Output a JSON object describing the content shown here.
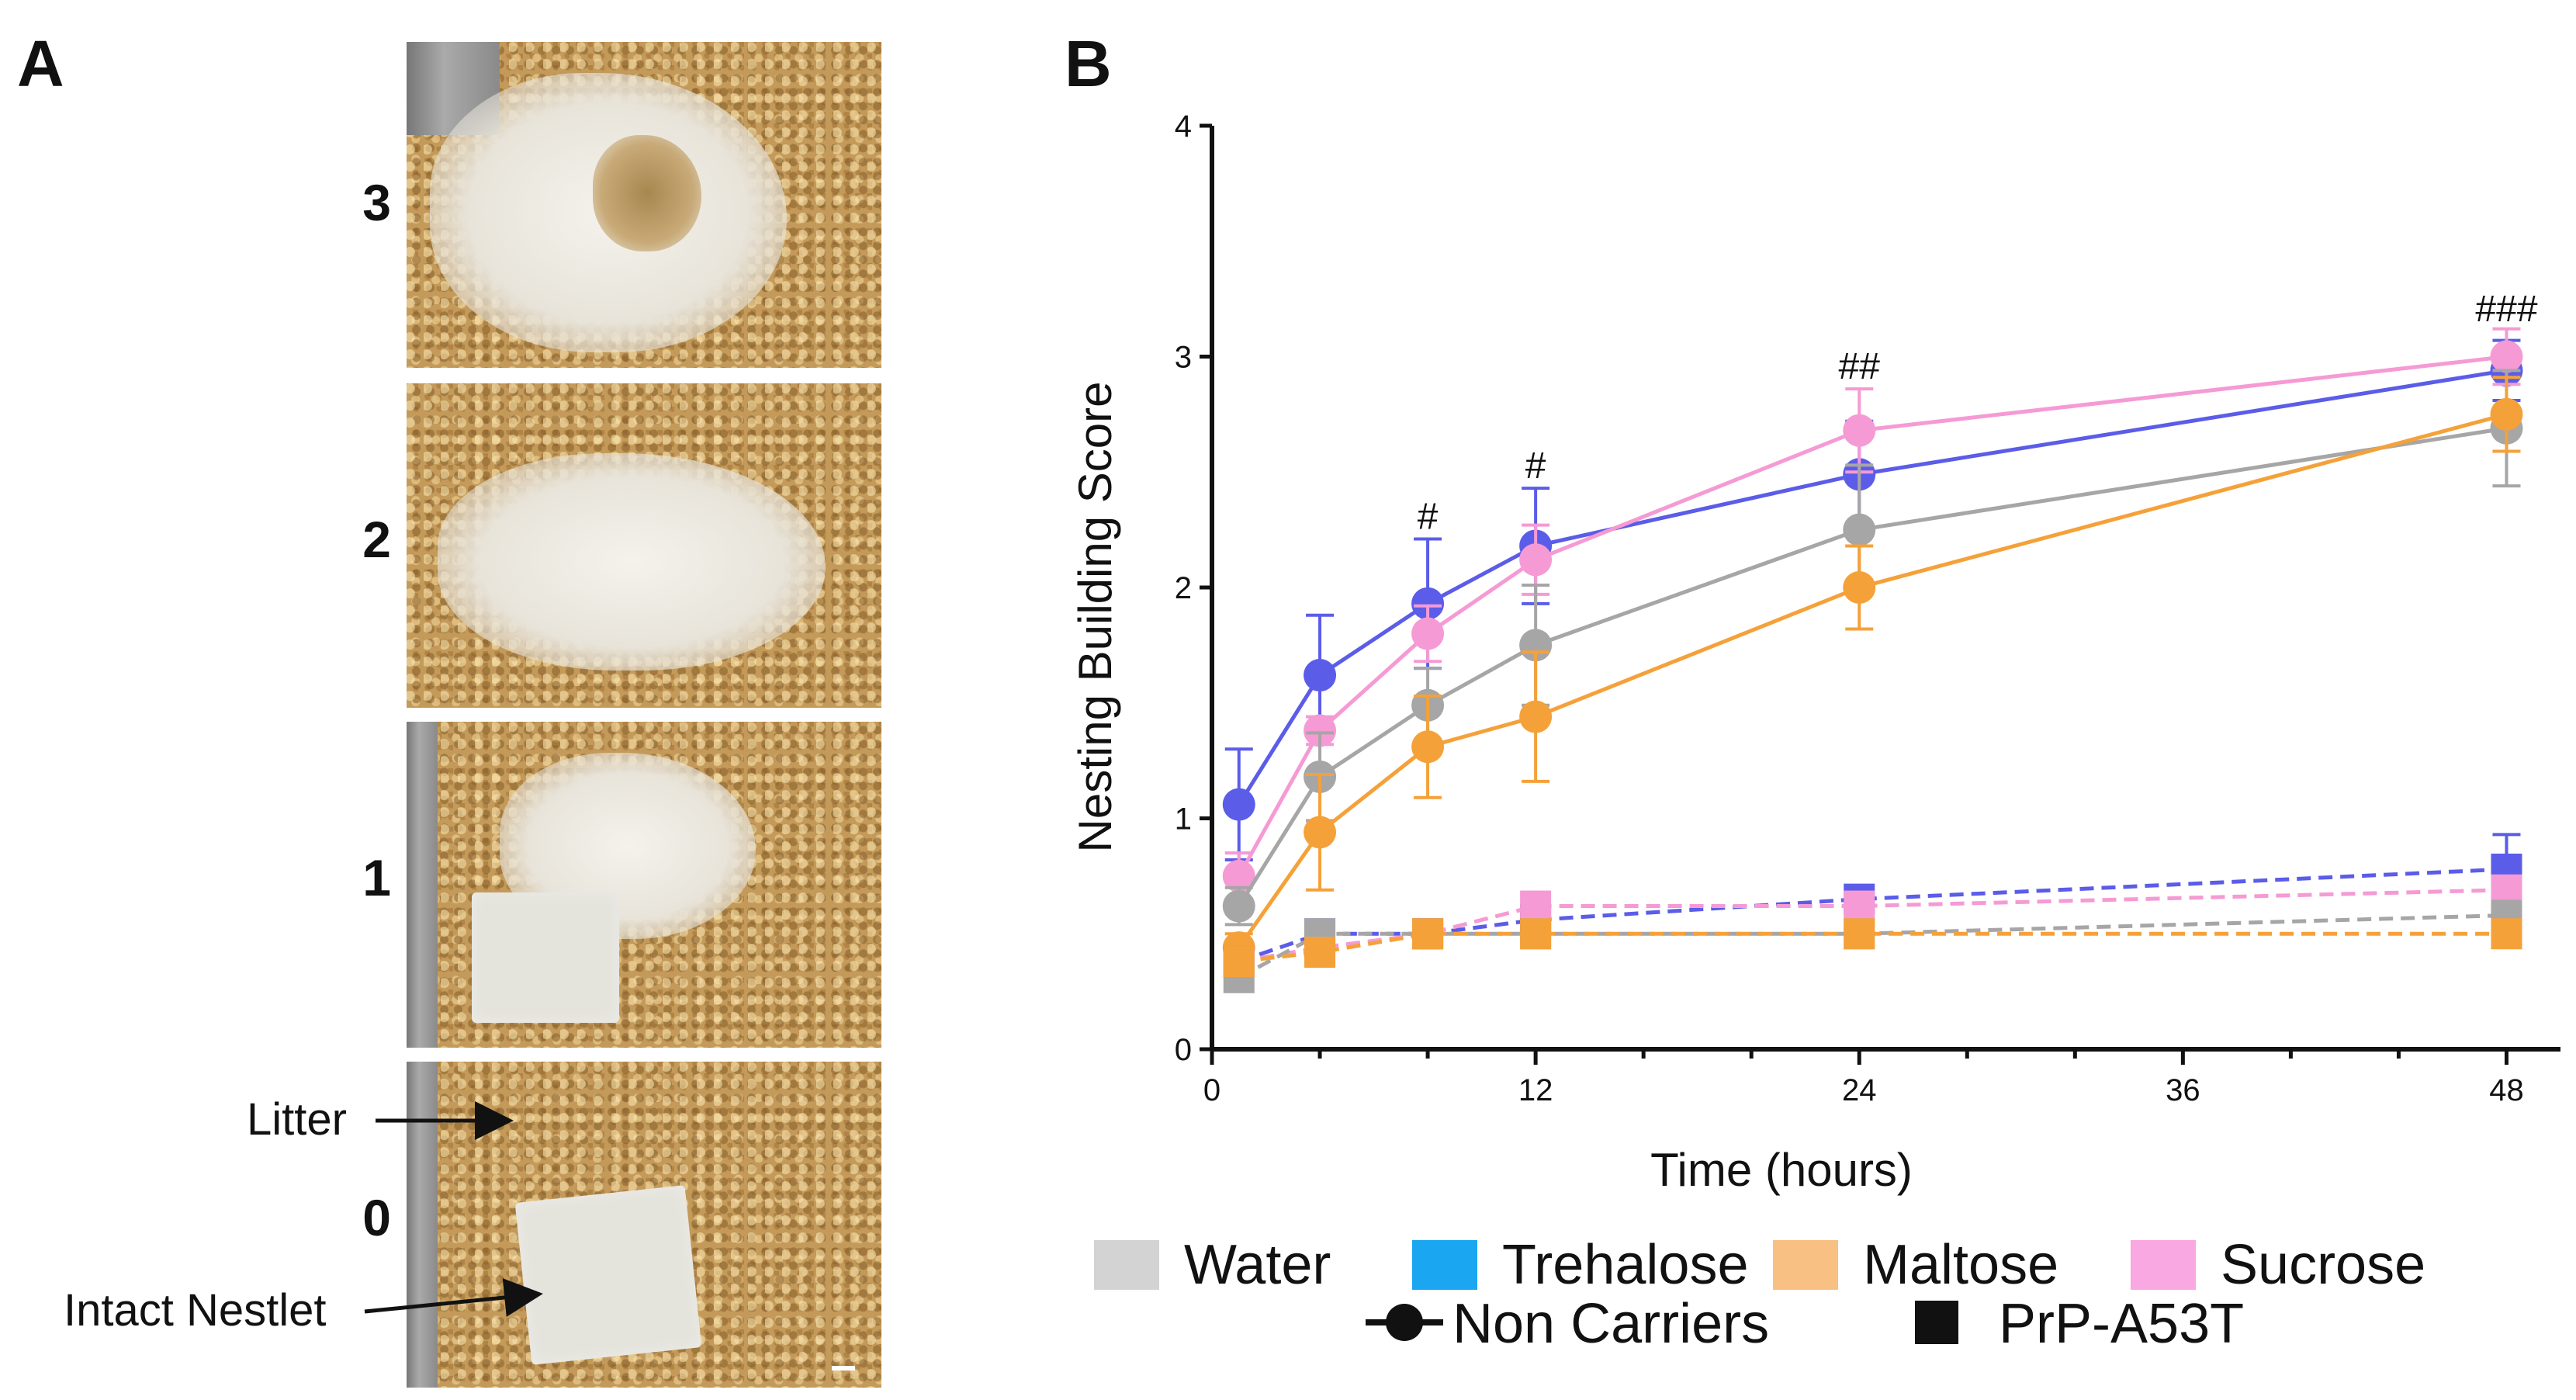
{
  "panel_a": {
    "letter": "A",
    "scores": [
      "3",
      "2",
      "1",
      "0"
    ],
    "annotations": {
      "litter": "Litter",
      "intact_nestlet": "Intact Nestlet"
    }
  },
  "panel_b": {
    "letter": "B"
  },
  "chart_data": {
    "type": "line",
    "ylabel": "Nesting Building Score",
    "xlabel": "Time (hours)",
    "xlim": [
      0,
      50
    ],
    "ylim": [
      0,
      4
    ],
    "xticks": [
      0,
      12,
      24,
      36,
      48
    ],
    "yticks": [
      0,
      1,
      2,
      3,
      4
    ],
    "x": [
      1,
      4,
      8,
      12,
      24,
      48
    ],
    "annotations": [
      {
        "x": 8,
        "y": 2.22,
        "text": "#"
      },
      {
        "x": 12,
        "y": 2.44,
        "text": "#"
      },
      {
        "x": 24,
        "y": 2.87,
        "text": "##"
      },
      {
        "x": 48,
        "y": 3.12,
        "text": "###"
      }
    ],
    "colors": {
      "Water": "#a6a6a6",
      "Trehalose": "#5b5ce8",
      "Maltose": "#f5a13a",
      "Sucrose": "#f59ad4"
    },
    "series": [
      {
        "name": "Trehalose Non Carriers",
        "treatment": "Trehalose",
        "genotype": "Non Carriers",
        "values": [
          1.06,
          1.62,
          1.93,
          2.18,
          2.49,
          2.94
        ],
        "errors": [
          0.24,
          0.26,
          0.28,
          0.25,
          0.23,
          0.13
        ]
      },
      {
        "name": "Sucrose Non Carriers",
        "treatment": "Sucrose",
        "genotype": "Non Carriers",
        "values": [
          0.75,
          1.38,
          1.8,
          2.12,
          2.68,
          3.0
        ],
        "errors": [
          0.1,
          0.06,
          0.12,
          0.15,
          0.18,
          0.12
        ]
      },
      {
        "name": "Water Non Carriers",
        "treatment": "Water",
        "genotype": "Non Carriers",
        "values": [
          0.62,
          1.18,
          1.49,
          1.75,
          2.25,
          2.69
        ],
        "errors": [
          0.08,
          0.19,
          0.16,
          0.26,
          0.28,
          0.25
        ]
      },
      {
        "name": "Maltose Non Carriers",
        "treatment": "Maltose",
        "genotype": "Non Carriers",
        "values": [
          0.44,
          0.94,
          1.31,
          1.44,
          2.0,
          2.75
        ],
        "errors": [
          0.06,
          0.25,
          0.22,
          0.28,
          0.18,
          0.16
        ]
      },
      {
        "name": "Trehalose PrP-A53T",
        "treatment": "Trehalose",
        "genotype": "PrP-A53T",
        "values": [
          0.38,
          0.5,
          0.5,
          0.56,
          0.65,
          0.78
        ],
        "errors": [
          0.05,
          0.0,
          0.0,
          0.0,
          0.0,
          0.15
        ]
      },
      {
        "name": "Sucrose PrP-A53T",
        "treatment": "Sucrose",
        "genotype": "PrP-A53T",
        "values": [
          0.38,
          0.44,
          0.5,
          0.62,
          0.62,
          0.69
        ],
        "errors": [
          0.05,
          0.04,
          0.0,
          0.0,
          0.0,
          0.05
        ]
      },
      {
        "name": "Water PrP-A53T",
        "treatment": "Water",
        "genotype": "PrP-A53T",
        "values": [
          0.31,
          0.5,
          0.5,
          0.5,
          0.5,
          0.58
        ],
        "errors": [
          0.05,
          0.0,
          0.0,
          0.0,
          0.0,
          0.06
        ]
      },
      {
        "name": "Maltose PrP-A53T",
        "treatment": "Maltose",
        "genotype": "PrP-A53T",
        "values": [
          0.38,
          0.42,
          0.5,
          0.5,
          0.5,
          0.5
        ],
        "errors": [
          0.05,
          0.04,
          0.0,
          0.0,
          0.0,
          0.0
        ]
      }
    ],
    "legend": {
      "treatments": [
        "Water",
        "Trehalose",
        "Maltose",
        "Sucrose"
      ],
      "treatment_colors": [
        "#d3d3d3",
        "#1aa6f0",
        "#f8c082",
        "#f9a8e2"
      ],
      "genotypes": [
        "Non Carriers",
        "PrP-A53T"
      ]
    }
  }
}
